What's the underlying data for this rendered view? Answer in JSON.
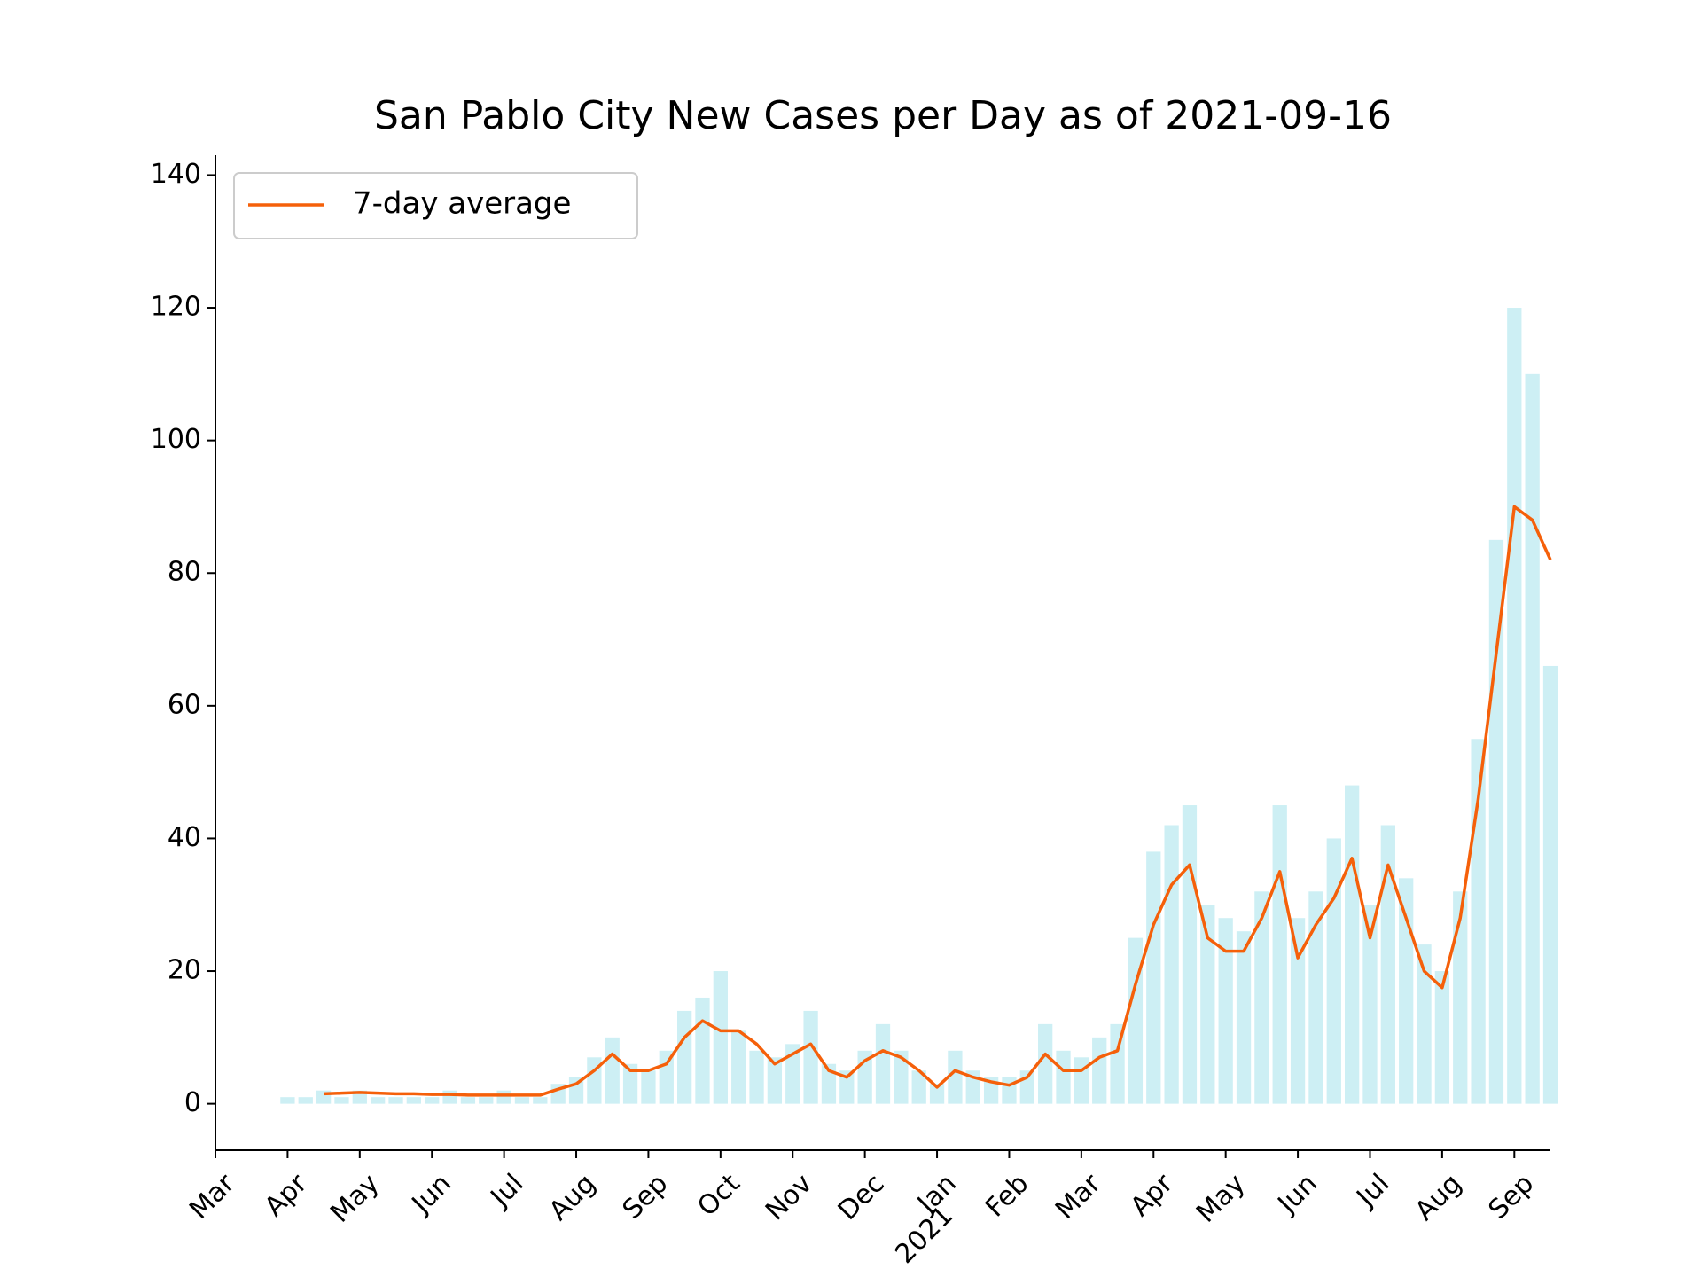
{
  "chart_data": {
    "type": "line",
    "title": "San Pablo City New Cases per Day as of 2021-09-16",
    "x": [
      1.0,
      1.25,
      1.5,
      1.75,
      2.0,
      2.25,
      2.5,
      2.75,
      3.0,
      3.25,
      3.5,
      3.75,
      4.0,
      4.25,
      4.5,
      4.75,
      5.0,
      5.25,
      5.5,
      5.75,
      6.0,
      6.25,
      6.5,
      6.75,
      7.0,
      7.25,
      7.5,
      7.75,
      8.0,
      8.25,
      8.5,
      8.75,
      9.0,
      9.25,
      9.5,
      9.75,
      10.0,
      10.25,
      10.5,
      10.75,
      11.0,
      11.25,
      11.5,
      11.75,
      12.0,
      12.25,
      12.5,
      12.75,
      13.0,
      13.25,
      13.5,
      13.75,
      14.0,
      14.25,
      14.5,
      14.75,
      15.0,
      15.25,
      15.5,
      15.75,
      16.0,
      16.25,
      16.5,
      16.75,
      17.0,
      17.25,
      17.5,
      17.75,
      18.0,
      18.25,
      18.5
    ],
    "series": [
      {
        "type": "bar",
        "color": "#cdeff4",
        "values": [
          1,
          1,
          2,
          1,
          2,
          1,
          1,
          1,
          1,
          2,
          1,
          1,
          2,
          1,
          1,
          3,
          4,
          7,
          10,
          6,
          5,
          8,
          14,
          16,
          20,
          11,
          8,
          7,
          9,
          14,
          6,
          5,
          8,
          12,
          8,
          5,
          3,
          8,
          5,
          4,
          4,
          5,
          12,
          8,
          7,
          10,
          12,
          25,
          38,
          42,
          45,
          30,
          28,
          26,
          32,
          45,
          28,
          32,
          40,
          48,
          30,
          42,
          34,
          24,
          20,
          32,
          55,
          85,
          120,
          110,
          66
        ]
      },
      {
        "type": "line",
        "name": "7-day average",
        "color": "#f5600a",
        "values": [
          null,
          null,
          1.5,
          1.6,
          1.7,
          1.6,
          1.5,
          1.5,
          1.4,
          1.4,
          1.3,
          1.3,
          1.3,
          1.3,
          1.3,
          2.2,
          3.0,
          5,
          7.5,
          5,
          5,
          6,
          10,
          12.5,
          11,
          11,
          9,
          6,
          7.5,
          9,
          5,
          4,
          6.5,
          8,
          7,
          5,
          2.5,
          5,
          4,
          3.3,
          2.8,
          4,
          7.5,
          5,
          5,
          7,
          8,
          18,
          27,
          33,
          36,
          25,
          23,
          23,
          28,
          35,
          22,
          27,
          31,
          37,
          25,
          36,
          28,
          20,
          17.5,
          28,
          46,
          68,
          90,
          88,
          82
        ]
      }
    ],
    "xlim": [
      0,
      18.5
    ],
    "xticks": [
      {
        "value": 0,
        "label": "Mar"
      },
      {
        "value": 1,
        "label": "Apr"
      },
      {
        "value": 2,
        "label": "May"
      },
      {
        "value": 3,
        "label": "Jun"
      },
      {
        "value": 4,
        "label": "Jul"
      },
      {
        "value": 5,
        "label": "Aug"
      },
      {
        "value": 6,
        "label": "Sep"
      },
      {
        "value": 7,
        "label": "Oct"
      },
      {
        "value": 8,
        "label": "Nov"
      },
      {
        "value": 9,
        "label": "Dec"
      },
      {
        "value": 10,
        "label": "Jan"
      },
      {
        "value": 11,
        "label": "Feb"
      },
      {
        "value": 12,
        "label": "Mar"
      },
      {
        "value": 13,
        "label": "Apr"
      },
      {
        "value": 14,
        "label": "May"
      },
      {
        "value": 15,
        "label": "Jun"
      },
      {
        "value": 16,
        "label": "Jul"
      },
      {
        "value": 17,
        "label": "Aug"
      },
      {
        "value": 18,
        "label": "Sep"
      }
    ],
    "year_label": "2021",
    "ylim": [
      -7,
      143
    ],
    "yticks": [
      0,
      20,
      40,
      60,
      80,
      100,
      120,
      140
    ],
    "grid": false,
    "legend": "upper left"
  }
}
